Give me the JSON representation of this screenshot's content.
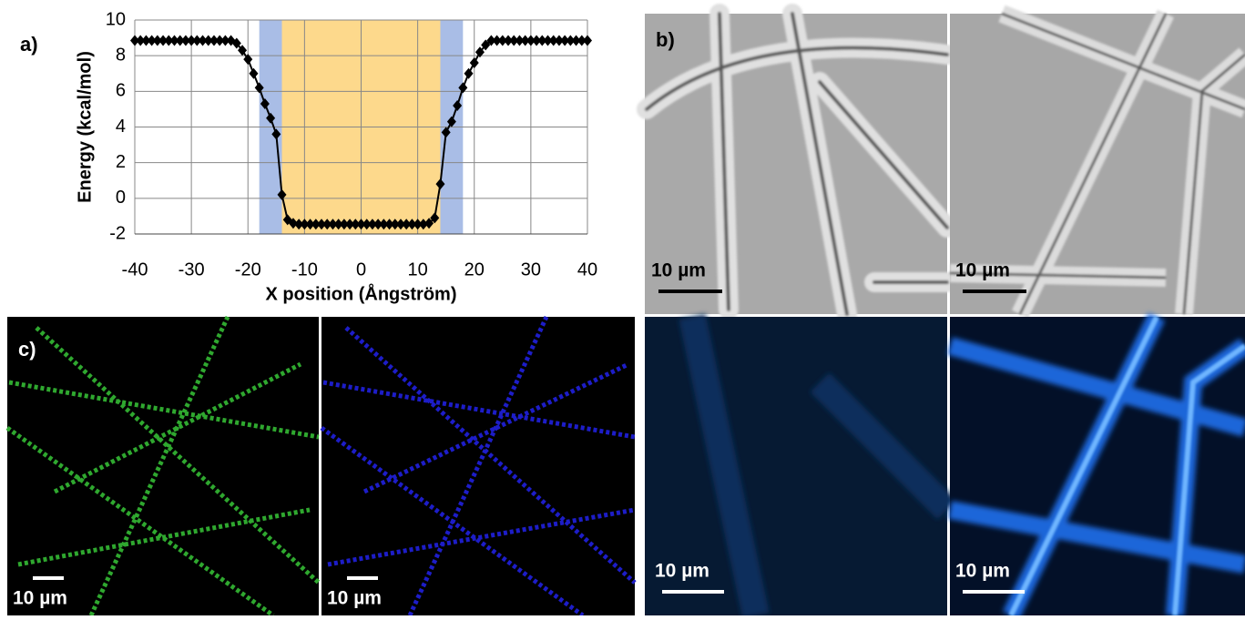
{
  "chart_data": {
    "type": "line",
    "xlabel": "X position (Ångström)",
    "ylabel": "Energy (kcal/mol)",
    "x": [
      -40,
      -39,
      -38,
      -37,
      -36,
      -35,
      -34,
      -33,
      -32,
      -31,
      -30,
      -29,
      -28,
      -27,
      -26,
      -25,
      -24,
      -23,
      -22,
      -21,
      -20,
      -19,
      -18,
      -17,
      -16,
      -15,
      -14,
      -13,
      -12,
      -11,
      -10,
      -9,
      -8,
      -7,
      -6,
      -5,
      -4,
      -3,
      -2,
      -1,
      0,
      1,
      2,
      3,
      4,
      5,
      6,
      7,
      8,
      9,
      10,
      11,
      12,
      13,
      14,
      15,
      16,
      17,
      18,
      19,
      20,
      21,
      22,
      23,
      24,
      25,
      26,
      27,
      28,
      29,
      30,
      31,
      32,
      33,
      34,
      35,
      36,
      37,
      38,
      39,
      40
    ],
    "values": [
      8.85,
      8.85,
      8.85,
      8.85,
      8.85,
      8.85,
      8.85,
      8.85,
      8.85,
      8.85,
      8.85,
      8.85,
      8.85,
      8.85,
      8.85,
      8.85,
      8.85,
      8.85,
      8.7,
      8.3,
      7.8,
      7.0,
      6.2,
      5.3,
      4.5,
      3.6,
      0.2,
      -1.2,
      -1.4,
      -1.45,
      -1.45,
      -1.45,
      -1.45,
      -1.45,
      -1.45,
      -1.45,
      -1.45,
      -1.45,
      -1.45,
      -1.45,
      -1.45,
      -1.45,
      -1.45,
      -1.45,
      -1.45,
      -1.45,
      -1.45,
      -1.45,
      -1.45,
      -1.45,
      -1.45,
      -1.45,
      -1.4,
      -1.1,
      0.8,
      3.7,
      4.3,
      5.2,
      6.2,
      7.0,
      7.6,
      8.2,
      8.6,
      8.85,
      8.85,
      8.85,
      8.85,
      8.85,
      8.85,
      8.85,
      8.85,
      8.85,
      8.85,
      8.85,
      8.85,
      8.85,
      8.85,
      8.85,
      8.85,
      8.85,
      8.85
    ],
    "color": "#000000",
    "bands": [
      {
        "from": -18,
        "to": 18,
        "color": "#a9bde6"
      },
      {
        "from": -14,
        "to": 14,
        "color": "#fdd98c"
      }
    ],
    "xlim": [
      -40,
      40
    ],
    "ylim": [
      -2,
      10
    ],
    "xticks": [
      -40,
      -30,
      -20,
      -10,
      0,
      10,
      20,
      30,
      40
    ],
    "yticks": [
      -2,
      0,
      2,
      4,
      6,
      8,
      10
    ],
    "grid": true
  },
  "panels": {
    "a": "a)",
    "b": "b)",
    "c": "c)"
  },
  "images": [
    {
      "scale_bar": "10 µm"
    },
    {
      "scale_bar": "10 µm"
    },
    {
      "scale_bar": "10 µm"
    },
    {
      "scale_bar": "10 µm"
    },
    {
      "scale_bar": "10 µm"
    },
    {
      "scale_bar": "10 µm"
    }
  ]
}
